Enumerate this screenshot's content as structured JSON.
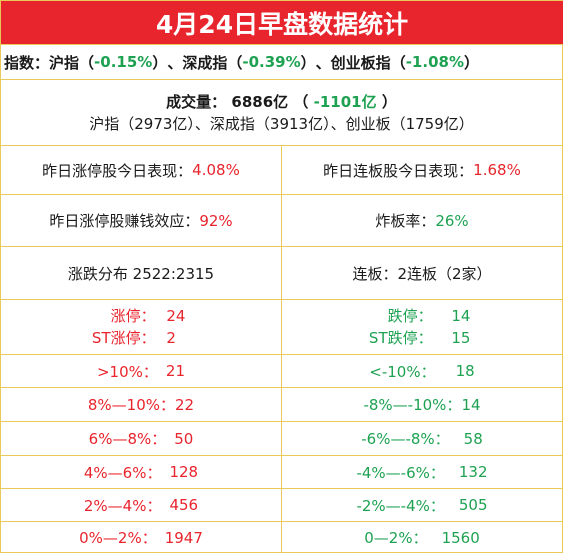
{
  "title": "4月24日早盘数据统计",
  "indices": {
    "label": "指数：",
    "sh_name": "沪指",
    "sh_value": "-0.15%",
    "sz_name": "深成指",
    "sz_value": "-0.39%",
    "cy_name": "创业板指",
    "cy_value": "-1.08%",
    "lparen": "（",
    "rparen": "）",
    "sep": "、"
  },
  "volume": {
    "label": "成交量：",
    "total": "6886亿",
    "change": "-1101亿",
    "breakdown": "沪指（2973亿）、深成指（3913亿）、创业板（1759亿）",
    "lparen": "（",
    "rparen": "）"
  },
  "stats": {
    "yesterday_limit_up_label": "昨日涨停股今日表现：",
    "yesterday_limit_up_value": "4.08%",
    "yesterday_consecutive_label": "昨日连板股今日表现：",
    "yesterday_consecutive_value": "1.68%",
    "profit_effect_label": "昨日涨停股赚钱效应：",
    "profit_effect_value": "92%",
    "blowup_rate_label": "炸板率：",
    "blowup_rate_value": "26%",
    "distribution": "涨跌分布 2522:2315",
    "consecutive_boards": "连板：2连板（2家）"
  },
  "distribution_rows": [
    {
      "up_label": "涨停：",
      "up_value": "24",
      "down_label": "跌停：",
      "down_value": "14"
    },
    {
      "up_label": "ST涨停：",
      "up_value": "2",
      "down_label": "ST跌停：",
      "down_value": "15"
    },
    {
      "up_label": ">10%：",
      "up_value": "21",
      "down_label": "<-10%：",
      "down_value": "18"
    },
    {
      "up_label": "8%—10%：",
      "up_value": "22",
      "down_label": "-8%—-10%：",
      "down_value": "14"
    },
    {
      "up_label": "6%—8%：",
      "up_value": "50",
      "down_label": "-6%—-8%：",
      "down_value": "58"
    },
    {
      "up_label": "4%—6%：",
      "up_value": "128",
      "down_label": "-4%—-6%：",
      "down_value": "132"
    },
    {
      "up_label": "2%—4%：",
      "up_value": "456",
      "down_label": "-2%—-4%：",
      "down_value": "505"
    },
    {
      "up_label": "0%—2%：",
      "up_value": "1947",
      "down_label": "0—2%：",
      "down_value": "1560"
    }
  ],
  "colors": {
    "header_bg": "#e8242d",
    "up": "#e8242d",
    "down": "#1ea252",
    "grid": "#e8c95a"
  }
}
